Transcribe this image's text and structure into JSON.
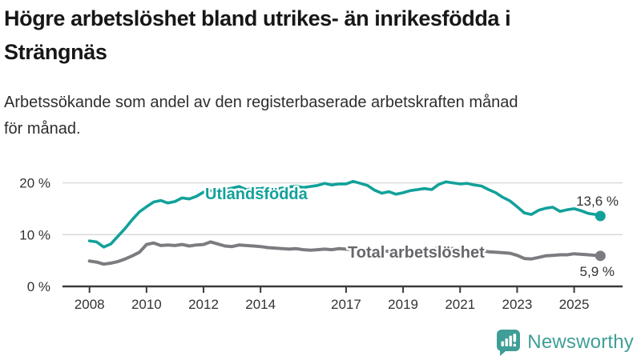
{
  "title": {
    "line1": "Högre arbetslöshet bland utrikes- än inrikesfödda i",
    "line2": "Strängnäs"
  },
  "subtitle": {
    "line1": "Arbetssökande som andel av den registerbaserade arbetskraften månad",
    "line2": "för månad."
  },
  "chart_data": {
    "type": "line",
    "title": "Högre arbetslöshet bland utrikes- än inrikesfödda i Strängnäs",
    "subtitle": "Arbetssökande som andel av den registerbaserade arbetskraften månad för månad.",
    "xlabel": "",
    "ylabel": "",
    "ylim": [
      0,
      22
    ],
    "grid": "horizontal-only",
    "grid_color": "#d6d6d6",
    "axis_color": "#3a3a3a",
    "tick_text_color": "#333333",
    "x": [
      2008,
      2008.25,
      2008.5,
      2008.75,
      2009,
      2009.25,
      2009.5,
      2009.75,
      2010,
      2010.25,
      2010.5,
      2010.75,
      2011,
      2011.25,
      2011.5,
      2011.75,
      2012,
      2012.25,
      2012.5,
      2012.75,
      2013,
      2013.25,
      2013.5,
      2013.75,
      2014,
      2014.25,
      2014.5,
      2014.75,
      2015,
      2015.25,
      2015.5,
      2015.75,
      2016,
      2016.25,
      2016.5,
      2016.75,
      2017,
      2017.25,
      2017.5,
      2017.75,
      2018,
      2018.25,
      2018.5,
      2018.75,
      2019,
      2019.25,
      2019.5,
      2019.75,
      2020,
      2020.25,
      2020.5,
      2020.75,
      2021,
      2021.25,
      2021.5,
      2021.75,
      2022,
      2022.25,
      2022.5,
      2022.75,
      2023,
      2023.25,
      2023.5,
      2023.75,
      2024,
      2024.25,
      2024.5,
      2024.75,
      2025,
      2025.25,
      2025.5,
      2025.75,
      2025.92
    ],
    "series": [
      {
        "name": "Utlandsfödda",
        "color": "#12a19a",
        "label_color": "#12a19a",
        "end_label": "13,6 %",
        "end_value": 13.6,
        "values": [
          8.8,
          8.6,
          7.6,
          8.2,
          9.7,
          11.2,
          12.9,
          14.4,
          15.4,
          16.3,
          16.6,
          16.1,
          16.4,
          17.1,
          16.9,
          17.4,
          18.2,
          18.5,
          18.3,
          18.7,
          19.0,
          19.3,
          18.7,
          18.9,
          18.9,
          19.1,
          18.8,
          19.0,
          19.2,
          19.4,
          19.1,
          19.3,
          19.5,
          19.9,
          19.6,
          19.8,
          19.8,
          20.3,
          19.9,
          19.5,
          18.6,
          18.0,
          18.3,
          17.8,
          18.1,
          18.5,
          18.7,
          18.9,
          18.7,
          19.7,
          20.2,
          20.0,
          19.8,
          19.9,
          19.6,
          19.4,
          18.7,
          18.1,
          17.2,
          16.5,
          15.4,
          14.2,
          13.9,
          14.7,
          15.1,
          15.3,
          14.5,
          14.8,
          15.0,
          14.6,
          14.1,
          13.9,
          13.6
        ]
      },
      {
        "name": "Total arbetslöshet",
        "color": "#7c7c80",
        "label_color": "#66666c",
        "end_label": "5,9 %",
        "end_value": 5.9,
        "values": [
          4.9,
          4.7,
          4.3,
          4.5,
          4.8,
          5.3,
          5.9,
          6.6,
          8.1,
          8.4,
          7.9,
          8.0,
          7.9,
          8.1,
          7.8,
          8.0,
          8.1,
          8.6,
          8.2,
          7.8,
          7.7,
          8.0,
          7.9,
          7.8,
          7.7,
          7.5,
          7.4,
          7.3,
          7.2,
          7.3,
          7.1,
          7.0,
          7.1,
          7.2,
          7.1,
          7.3,
          7.2,
          7.1,
          7.0,
          6.9,
          6.9,
          6.8,
          6.8,
          6.9,
          6.9,
          7.0,
          7.0,
          7.1,
          7.2,
          7.4,
          7.4,
          7.3,
          7.2,
          7.1,
          7.0,
          6.9,
          6.7,
          6.6,
          6.5,
          6.4,
          6.0,
          5.4,
          5.3,
          5.6,
          5.9,
          6.0,
          6.1,
          6.1,
          6.3,
          6.2,
          6.1,
          6.0,
          5.9
        ]
      }
    ],
    "x_ticks": [
      {
        "year": 2008,
        "label": "2008"
      },
      {
        "year": 2010,
        "label": "2010"
      },
      {
        "year": 2012,
        "label": "2012"
      },
      {
        "year": 2014,
        "label": "2014"
      },
      {
        "year": 2017,
        "label": "2017"
      },
      {
        "year": 2019,
        "label": "2019"
      },
      {
        "year": 2021,
        "label": "2021"
      },
      {
        "year": 2023,
        "label": "2023"
      },
      {
        "year": 2025,
        "label": "2025"
      }
    ],
    "y_ticks": [
      {
        "value": 0,
        "label": "0 %"
      },
      {
        "value": 10,
        "label": "10 %"
      },
      {
        "value": 20,
        "label": "20 %"
      }
    ],
    "legend_position": "inline-labels-on-lines"
  },
  "footer": {
    "brand": "Newsworthy",
    "logo_color": "#3f9e97",
    "logo_icon": "bar-chart-speech-bubble-icon"
  }
}
